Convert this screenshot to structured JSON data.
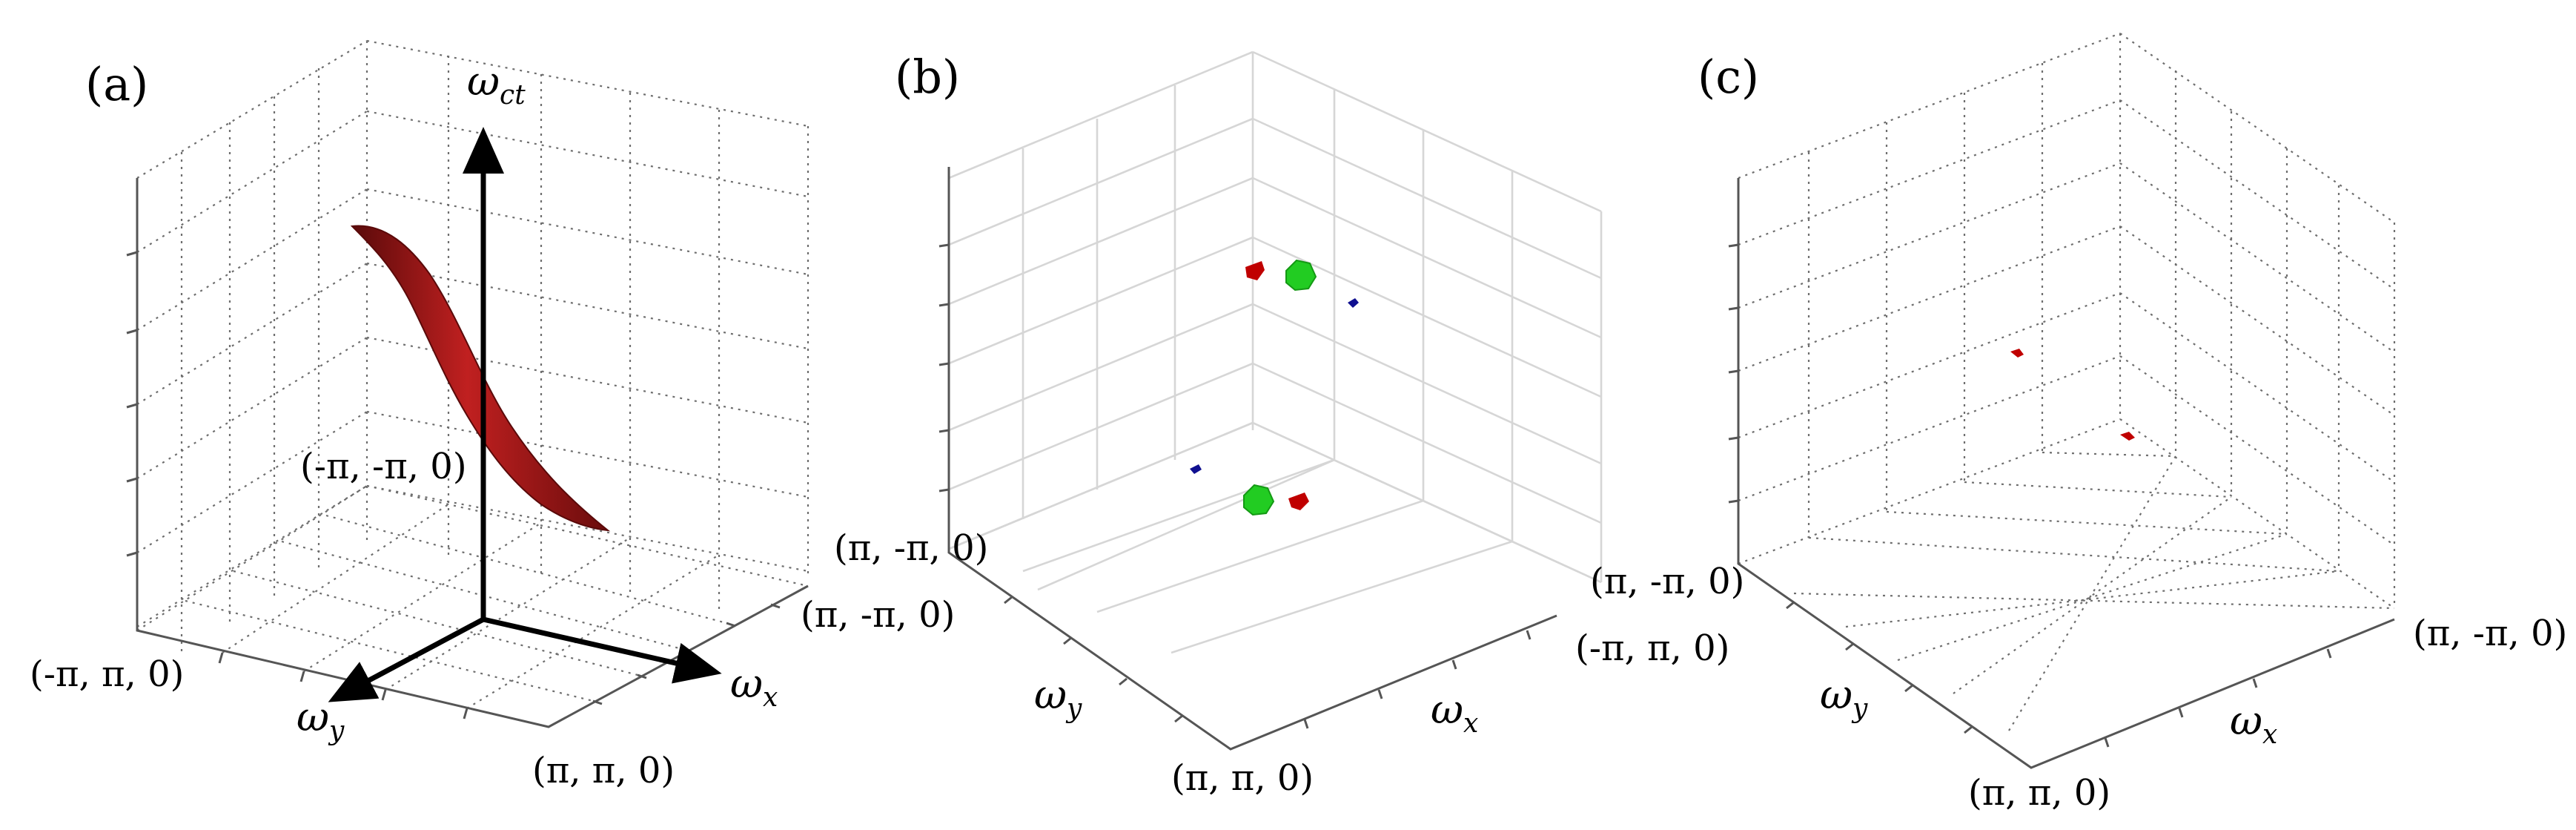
{
  "panels": [
    {
      "label": "(a)",
      "corners": [
        "(-π, π, 0)",
        "(π, π, 0)",
        "(π, -π, 0)",
        "(-π, -π, 0)"
      ],
      "axes": {
        "x": {
          "symbol": "ω",
          "sub": "x"
        },
        "y": {
          "symbol": "ω",
          "sub": "y"
        },
        "z": {
          "symbol": "ω",
          "sub": "ct"
        }
      },
      "surface_color": "#a01818"
    },
    {
      "label": "(b)",
      "corners": [
        "(π, -π, 0)",
        "(π, π, 0)",
        "(-π, π, 0)",
        "(π, -π, 0)"
      ],
      "axes": {
        "x": {
          "symbol": "ω",
          "sub": "x"
        },
        "y": {
          "symbol": "ω",
          "sub": "y"
        }
      },
      "blob_colors": {
        "red": "#c00000",
        "green": "#22cc22",
        "blue": "#101090"
      }
    },
    {
      "label": "(c)",
      "corners": [
        "(π, π, 0)",
        "(π, -π, 0)"
      ],
      "axes": {
        "x": {
          "symbol": "ω",
          "sub": "x"
        },
        "y": {
          "symbol": "ω",
          "sub": "y"
        }
      },
      "blob_colors": {
        "red": "#c00000"
      }
    }
  ]
}
